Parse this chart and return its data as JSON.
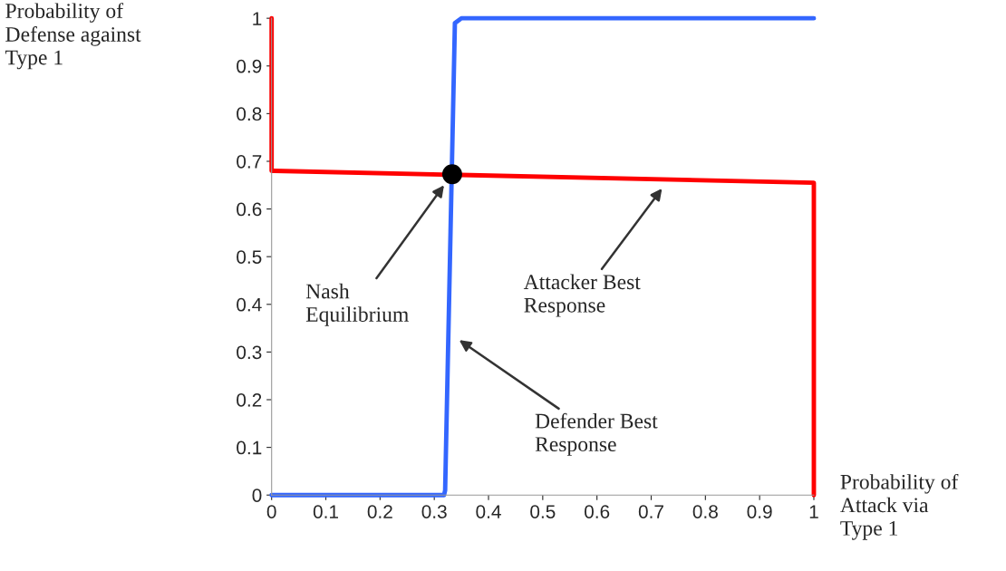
{
  "chart_data": {
    "type": "line",
    "xlabel": "Probability of\nAttack via\nType 1",
    "ylabel": "Probability of\nDefense against\nType 1",
    "xlim": [
      0,
      1
    ],
    "ylim": [
      0,
      1
    ],
    "xticks": [
      0,
      0.1,
      0.2,
      0.3,
      0.4,
      0.5,
      0.6,
      0.7,
      0.8,
      0.9,
      1
    ],
    "yticks": [
      0,
      0.1,
      0.2,
      0.3,
      0.4,
      0.5,
      0.6,
      0.7,
      0.8,
      0.9,
      1
    ],
    "grid": false,
    "legend": false,
    "marker": "none",
    "line_style": "solid",
    "series": [
      {
        "color": "#ff0000",
        "x": [
          0,
          0,
          0.005,
          1,
          1
        ],
        "values": [
          1,
          0.68,
          0.68,
          0.655,
          0
        ]
      },
      {
        "color": "#3366ff",
        "x": [
          0,
          0.318,
          0.32,
          0.338,
          0.35,
          1
        ],
        "values": [
          0,
          0,
          0.01,
          0.99,
          1,
          1
        ]
      },
      {
        "type": "scatter",
        "color": "#000000",
        "marker": "circle",
        "x": [
          0.333
        ],
        "values": [
          0.673
        ]
      }
    ],
    "annotations": [
      {
        "text": "Nash\nEquilibrium",
        "x": 0.318,
        "y": 0.65
      },
      "Attacker Best\nResponse",
      "Defender Best\nResponse"
    ]
  }
}
